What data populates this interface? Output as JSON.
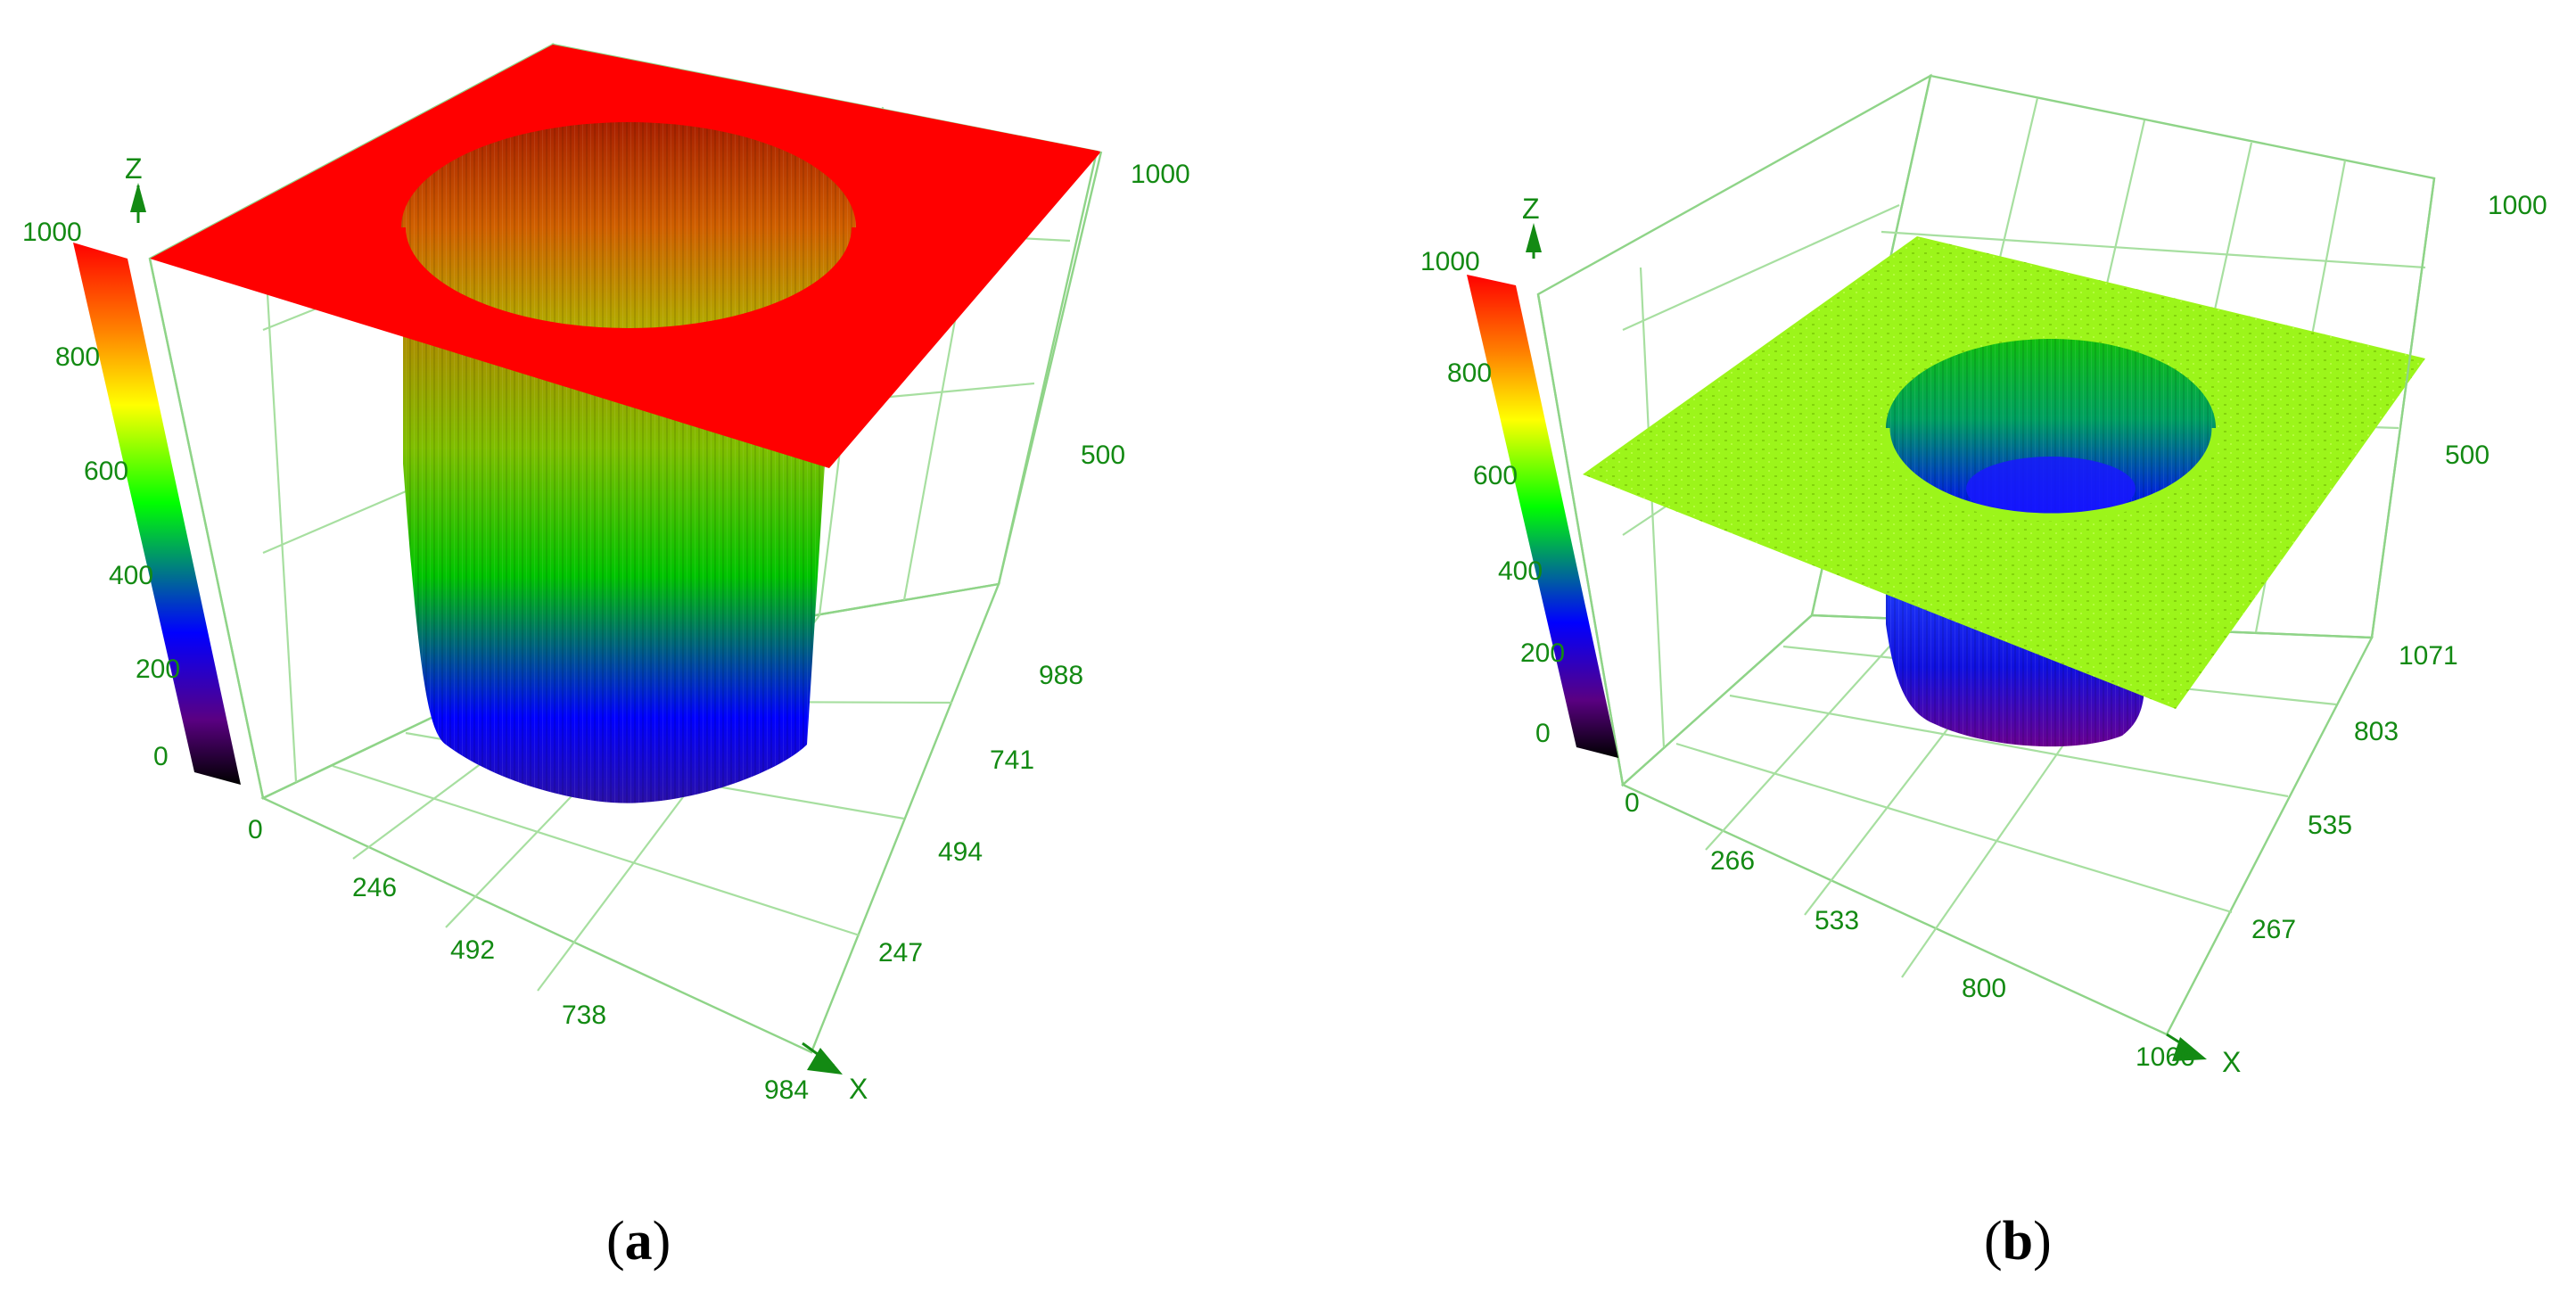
{
  "colors": {
    "axis_text": "#138a13",
    "grid": "#a7dfa0",
    "surface_a": "#ff0000",
    "surface_b": "#9cf51a"
  },
  "chart_data": [
    {
      "type": "surface3d",
      "panel_label": "(a)",
      "caption_open": "(",
      "caption_letter": "a",
      "caption_close": ")",
      "axis_names": {
        "x": "X",
        "z": "Z"
      },
      "x_ticks": [
        "0",
        "246",
        "492",
        "738",
        "984"
      ],
      "y_ticks": [
        "247",
        "494",
        "741",
        "988"
      ],
      "z_ticks": [
        "500",
        "1000"
      ],
      "colorbar_ticks": [
        "0",
        "200",
        "400",
        "600",
        "800",
        "1000"
      ],
      "colorscale": [
        "#000000",
        "#5a0082",
        "#0000ff",
        "#00ff00",
        "#ffff00",
        "#ff8000",
        "#ff0000"
      ],
      "surface": {
        "plateau_height": 1000,
        "hole_bottom_height": 60,
        "hole_center": [
          492,
          494
        ],
        "hole_radius": 270
      },
      "xlim": [
        0,
        984
      ],
      "ylim": [
        0,
        988
      ],
      "zlim": [
        0,
        1000
      ]
    },
    {
      "type": "surface3d",
      "panel_label": "(b)",
      "caption_open": "(",
      "caption_letter": "b",
      "caption_close": ")",
      "axis_names": {
        "x": "X",
        "z": "Z"
      },
      "x_ticks": [
        "0",
        "266",
        "533",
        "800",
        "1066"
      ],
      "y_ticks": [
        "267",
        "535",
        "803",
        "1071"
      ],
      "z_ticks": [
        "500",
        "1000"
      ],
      "colorbar_ticks": [
        "0",
        "200",
        "400",
        "600",
        "800",
        "1000"
      ],
      "colorscale": [
        "#000000",
        "#5a0082",
        "#0000ff",
        "#00ff00",
        "#ffff00",
        "#ff8000",
        "#ff0000"
      ],
      "surface": {
        "plateau_height": 560,
        "hole_bottom_height": 60,
        "hole_center": [
          533,
          535
        ],
        "hole_radius": 220
      },
      "xlim": [
        0,
        1066
      ],
      "ylim": [
        0,
        1071
      ],
      "zlim": [
        0,
        1000
      ]
    }
  ]
}
